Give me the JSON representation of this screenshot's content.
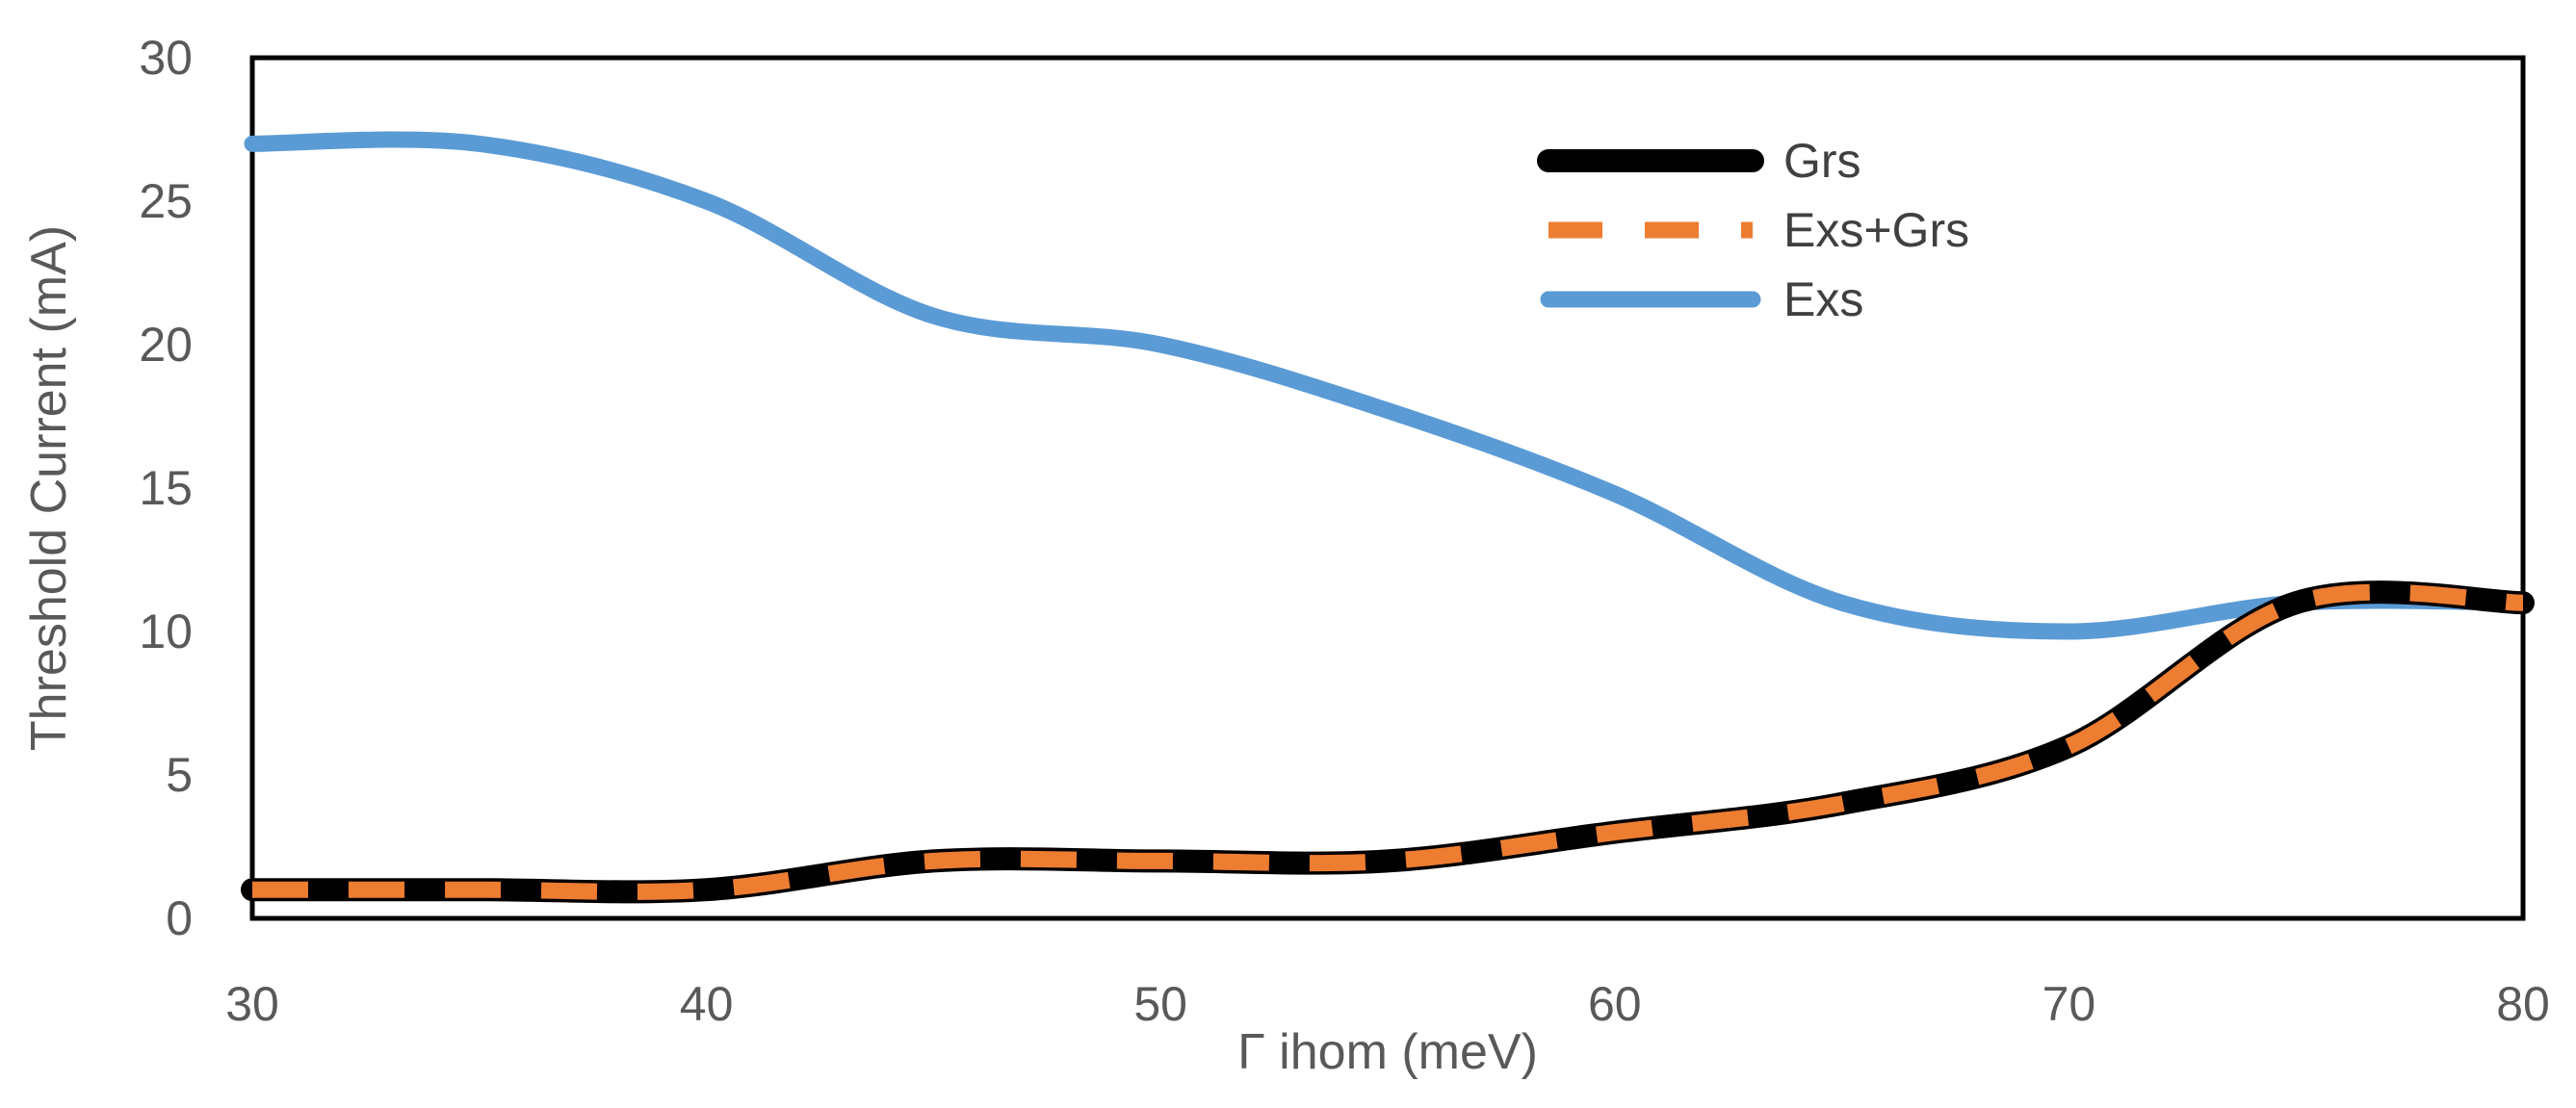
{
  "chart_data": {
    "type": "line",
    "title": "",
    "xlabel": "Γ ihom (meV)",
    "ylabel": "Threshold Current (mA)",
    "xlim": [
      30,
      80
    ],
    "ylim": [
      0,
      30
    ],
    "x_ticks": [
      "30",
      "40",
      "50",
      "60",
      "70",
      "80"
    ],
    "y_ticks": [
      "0",
      "5",
      "10",
      "15",
      "20",
      "25",
      "30"
    ],
    "grid": false,
    "legend_position": "top-center",
    "x": [
      30,
      35,
      40,
      45,
      50,
      55,
      60,
      65,
      70,
      75,
      80
    ],
    "series": [
      {
        "name": "Grs",
        "color": "#000000",
        "style": "solid",
        "values": [
          1.0,
          1.0,
          1.0,
          2.0,
          2.0,
          2.0,
          3.0,
          4.0,
          6.0,
          11.0,
          11.0
        ]
      },
      {
        "name": "Exs+Grs",
        "color": "#ED7D31",
        "style": "dashed",
        "values": [
          1.0,
          1.0,
          1.0,
          2.0,
          2.0,
          2.0,
          3.0,
          4.0,
          6.0,
          11.0,
          11.0
        ]
      },
      {
        "name": "Exs",
        "color": "#5B9BD5",
        "style": "solid",
        "values": [
          27.0,
          27.0,
          25.0,
          21.0,
          20.0,
          17.7,
          14.8,
          11.0,
          10.0,
          11.0,
          11.0
        ]
      }
    ]
  }
}
